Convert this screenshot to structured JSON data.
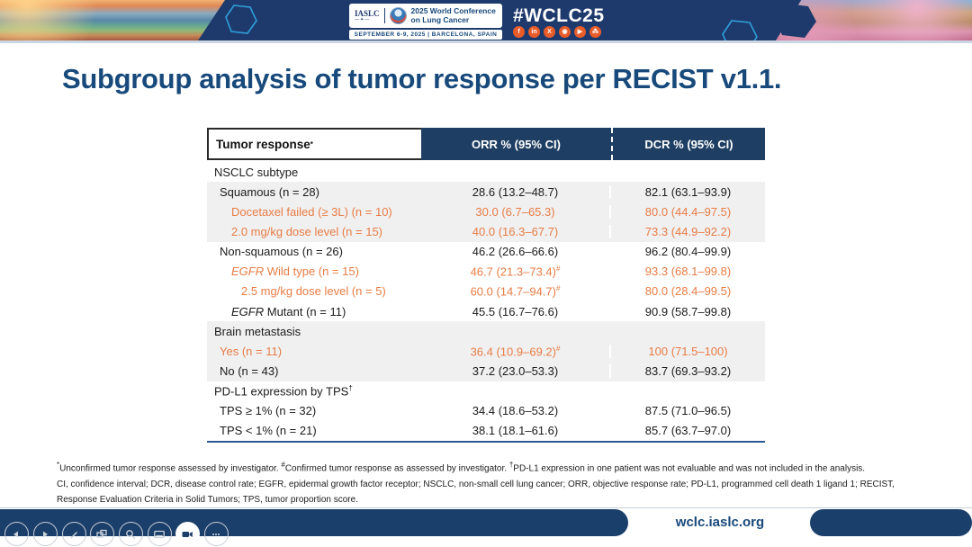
{
  "banner": {
    "iaslc": "IASLC",
    "conference_line1": "2025 World Conference",
    "conference_line2": "on Lung Cancer",
    "date_location": "SEPTEMBER 6-9, 2025   |   BARCELONA, SPAIN",
    "hashtag": "#WCLC25",
    "social_icons": [
      "facebook",
      "linkedin",
      "x",
      "instagram",
      "youtube",
      "share"
    ]
  },
  "title": "Subgroup analysis of tumor response per RECIST v1.1.",
  "table": {
    "header": {
      "col1": "Tumor response",
      "col1_sup": "*",
      "col2": "ORR % (95% CI)",
      "col3": "DCR % (95% CI)"
    },
    "rows": [
      {
        "label": "NSCLC subtype",
        "indent": 0,
        "tone": "black",
        "bg": "white",
        "orr": "",
        "dcr": ""
      },
      {
        "label": "Squamous (n = 28)",
        "indent": 1,
        "tone": "black",
        "bg": "gray",
        "orr": "28.6 (13.2–48.7)",
        "dcr": "82.1 (63.1–93.9)"
      },
      {
        "label": "Docetaxel failed (≥ 3L) (n = 10)",
        "indent": 2,
        "tone": "orange",
        "bg": "gray",
        "orr": "30.0 (6.7–65.3)",
        "dcr": "80.0 (44.4–97.5)"
      },
      {
        "label": "2.0 mg/kg dose level (n = 15)",
        "indent": 2,
        "tone": "orange",
        "bg": "gray",
        "orr": "40.0 (16.3–67.7)",
        "dcr": "73.3 (44.9–92.2)"
      },
      {
        "label": "Non-squamous (n = 26)",
        "indent": 1,
        "tone": "black",
        "bg": "white",
        "orr": "46.2 (26.6–66.6)",
        "dcr": "96.2 (80.4–99.9)"
      },
      {
        "italic_lead": "EGFR",
        "label": " Wild type (n = 15)",
        "indent": 2,
        "tone": "orange",
        "bg": "white",
        "orr": "46.7 (21.3–73.4)",
        "orr_sup": "#",
        "dcr": "93.3 (68.1–99.8)"
      },
      {
        "label": "2.5 mg/kg dose level (n = 5)",
        "indent": 3,
        "tone": "orange",
        "bg": "white",
        "orr": "60.0 (14.7–94.7)",
        "orr_sup": "#",
        "dcr": "80.0 (28.4–99.5)"
      },
      {
        "italic_lead": "EGFR",
        "label": " Mutant (n = 11)",
        "indent": 2,
        "tone": "black",
        "bg": "white",
        "orr": "45.5 (16.7–76.6)",
        "dcr": "90.9 (58.7–99.8)"
      },
      {
        "label": "Brain metastasis",
        "indent": 0,
        "tone": "black",
        "bg": "gray",
        "orr": "",
        "dcr": ""
      },
      {
        "label": "Yes (n = 11)",
        "indent": 1,
        "tone": "orange",
        "bg": "gray",
        "orr": "36.4 (10.9–69.2)",
        "orr_sup": "#",
        "dcr": "100 (71.5–100)"
      },
      {
        "label": "No (n = 43)",
        "indent": 1,
        "tone": "black",
        "bg": "gray",
        "orr": "37.2 (23.0–53.3)",
        "dcr": "83.7 (69.3–93.2)"
      },
      {
        "label": "PD-L1 expression by TPS",
        "label_sup": "†",
        "indent": 0,
        "tone": "black",
        "bg": "white",
        "orr": "",
        "dcr": ""
      },
      {
        "label": "TPS ≥ 1% (n = 32)",
        "indent": 1,
        "tone": "black",
        "bg": "white",
        "orr": "34.4 (18.6–53.2)",
        "dcr": "87.5 (71.0–96.5)"
      },
      {
        "label": "TPS < 1% (n = 21)",
        "indent": 1,
        "tone": "black",
        "bg": "white",
        "orr": "38.1 (18.1–61.6)",
        "dcr": "85.7 (63.7–97.0)"
      }
    ]
  },
  "footnotes": {
    "line1": [
      {
        "sup": "*",
        "text": "Unconfirmed tumor response assessed by investigator. "
      },
      {
        "sup": "#",
        "text": "Confirmed tumor response as assessed by investigator. "
      },
      {
        "sup": "†",
        "text": "PD-L1 expression in one patient was not evaluable and was not included in the analysis."
      }
    ],
    "line2": "CI, confidence interval; DCR, disease control rate; EGFR, epidermal growth factor receptor; NSCLC, non-small cell lung cancer; ORR, objective response rate; PD-L1, programmed cell death 1 ligand 1; RECIST,",
    "line3": "Response Evaluation Criteria in Solid Tumors; TPS, tumor proportion score."
  },
  "footer": {
    "website": "wclc.iaslc.org"
  },
  "controls": {
    "items": [
      "previous-slide",
      "next-slide",
      "pen",
      "slide-sorter",
      "zoom",
      "captions",
      "camera",
      "more-options"
    ],
    "active": "camera"
  },
  "colors": {
    "banner_navy": "#1e3a6d",
    "table_header_navy": "#1e3f63",
    "title_navy": "#17497b",
    "accent_orange": "#e87c44",
    "row_gray": "#f0f0f1",
    "footer_navy": "#1b3f6b",
    "social_orange": "#e85c2a"
  }
}
